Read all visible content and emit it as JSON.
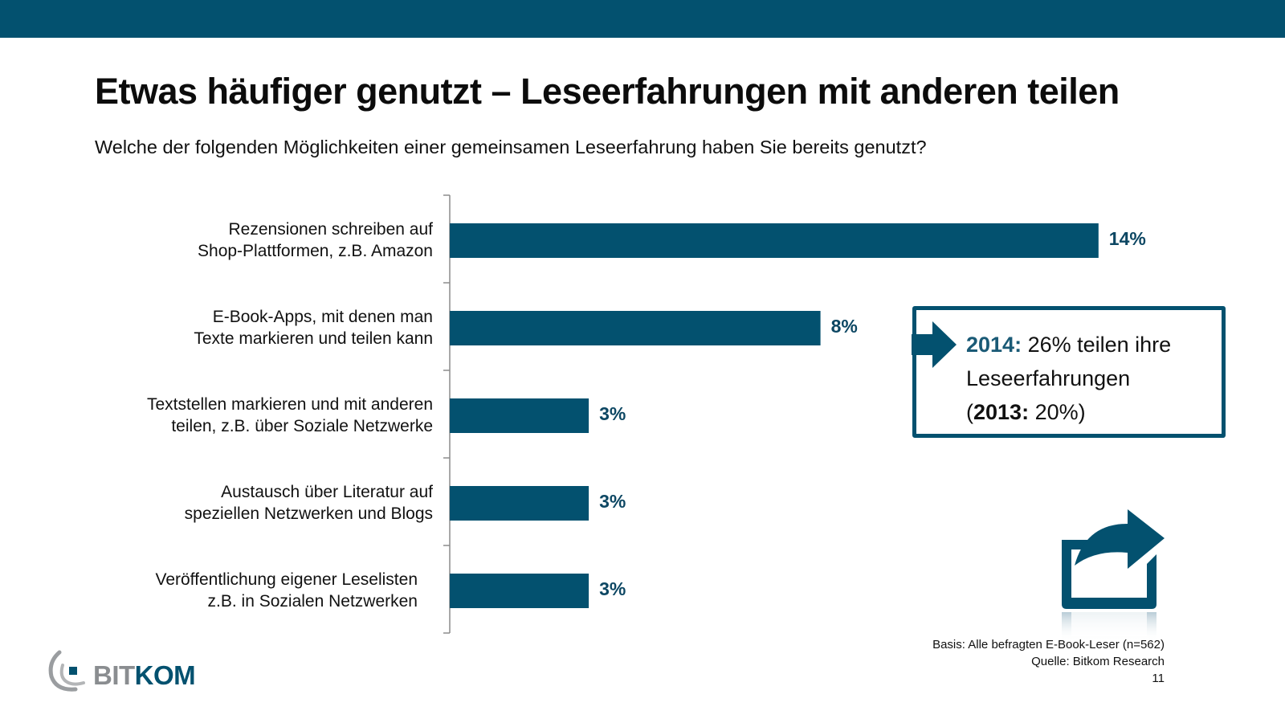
{
  "header": {
    "title": "Etwas häufiger genutzt – Leseerfahrungen mit anderen teilen",
    "subtitle": "Welche der folgenden Möglichkeiten einer gemeinsamen Leseerfahrung haben Sie bereits genutzt?"
  },
  "colors": {
    "brand": "#03516f",
    "bar": "#03516f",
    "value_label": "#0d4763",
    "axis": "#8c8c8c",
    "logo_grey": "#8a8d90"
  },
  "chart_data": {
    "type": "bar",
    "orientation": "horizontal",
    "title": "Welche der folgenden Möglichkeiten einer gemeinsamen Leseerfahrung haben Sie bereits genutzt?",
    "xlabel": "",
    "ylabel": "",
    "unit": "%",
    "xlim": [
      0,
      14
    ],
    "grid": false,
    "legend": "none",
    "categories": [
      [
        "Rezensionen schreiben auf",
        "Shop-Plattformen, z.B. Amazon"
      ],
      [
        "E-Book-Apps, mit denen man",
        "Texte markieren und teilen kann"
      ],
      [
        "Textstellen markieren und mit anderen",
        "teilen, z.B. über Soziale Netzwerke"
      ],
      [
        "Austausch über Literatur auf",
        "speziellen Netzwerken und Blogs"
      ],
      [
        "Veröffentlichung eigener Leselisten",
        "z.B. in Sozialen Netzwerken"
      ]
    ],
    "values": [
      14,
      8,
      3,
      3,
      3
    ],
    "value_labels": [
      "14%",
      "8%",
      "3%",
      "3%",
      "3%"
    ]
  },
  "callout": {
    "year_2014_label": "2014:",
    "line1_rest": " 26% teilen ihre",
    "line2": "Leseerfahrungen",
    "line3_open": "(",
    "year_2013_label": "2013:",
    "line3_rest": " 20%)"
  },
  "icons": {
    "callout_arrow": "arrow-right-icon",
    "share": "share-icon"
  },
  "footer": {
    "basis": "Basis: Alle befragten E-Book-Leser (n=562)",
    "source": "Quelle: Bitkom Research",
    "page_number": "11"
  },
  "logo": {
    "part1": "BIT",
    "part2": "KOM"
  }
}
